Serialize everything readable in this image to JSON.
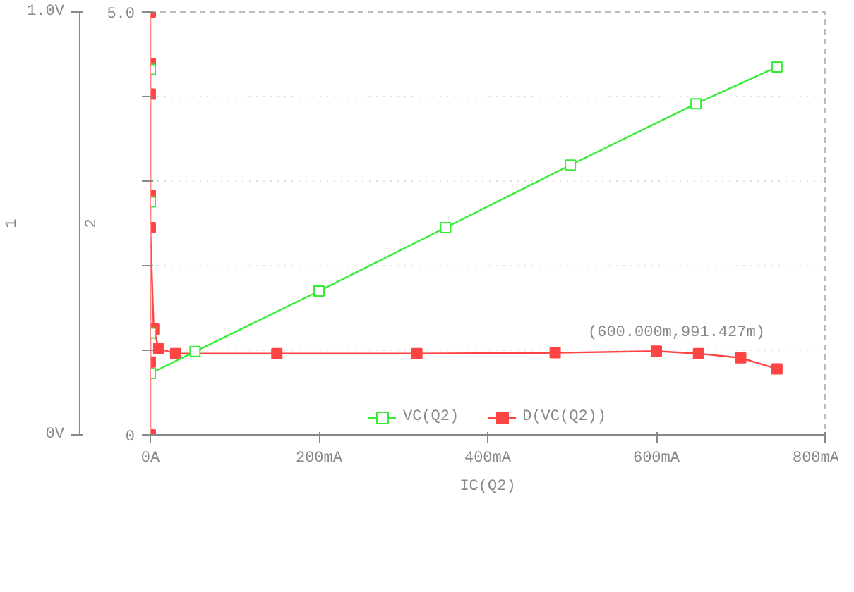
{
  "chart_data": {
    "type": "line",
    "xlabel": "IC(Q2)",
    "ylabel": "1",
    "y2label": "2",
    "xlim": [
      0,
      800
    ],
    "xticks": [
      {
        "value": 0,
        "label": "0A"
      },
      {
        "value": 200,
        "label": "200mA"
      },
      {
        "value": 400,
        "label": "400mA"
      },
      {
        "value": 600,
        "label": "600mA"
      },
      {
        "value": 800,
        "label": "800mA"
      }
    ],
    "ylim": [
      0,
      1.0
    ],
    "yticks": [
      {
        "value": 0,
        "label": "0V"
      },
      {
        "value": 1.0,
        "label": "1.0V"
      }
    ],
    "y2lim": [
      0,
      5.0
    ],
    "y2ticks": [
      0,
      {
        "value": 1,
        "label": null
      },
      {
        "value": 2,
        "label": null
      },
      {
        "value": 3,
        "label": null
      },
      {
        "value": 4,
        "label": null
      },
      {
        "value": 5.0,
        "label": "5.0"
      }
    ],
    "grid": "y2",
    "legend": "bottom",
    "marker": "square",
    "line_style": "solid",
    "series": [
      {
        "name": "VC(Q2)",
        "color": "#33ee33",
        "x": [
          0,
          0,
          0,
          0,
          53,
          200,
          350,
          498,
          647,
          743
        ],
        "values": [
          0.864,
          0.551,
          0.241,
          0.145,
          0.197,
          0.34,
          0.49,
          0.638,
          0.783,
          0.87
        ]
      },
      {
        "name": "D(VC(Q2))",
        "color": "#ff4444",
        "axis": "y2",
        "x": [
          0,
          0,
          0,
          0,
          0,
          0,
          0,
          4,
          10,
          30,
          150,
          316,
          480,
          600,
          650,
          700,
          743
        ],
        "values": [
          0,
          0.86,
          5.0,
          4.39,
          4.03,
          2.83,
          2.45,
          1.25,
          1.02,
          0.96,
          0.96,
          0.96,
          0.97,
          0.99,
          0.96,
          0.91,
          0.78
        ]
      }
    ],
    "annotations": [
      "(600.000m,991.427m)"
    ]
  }
}
